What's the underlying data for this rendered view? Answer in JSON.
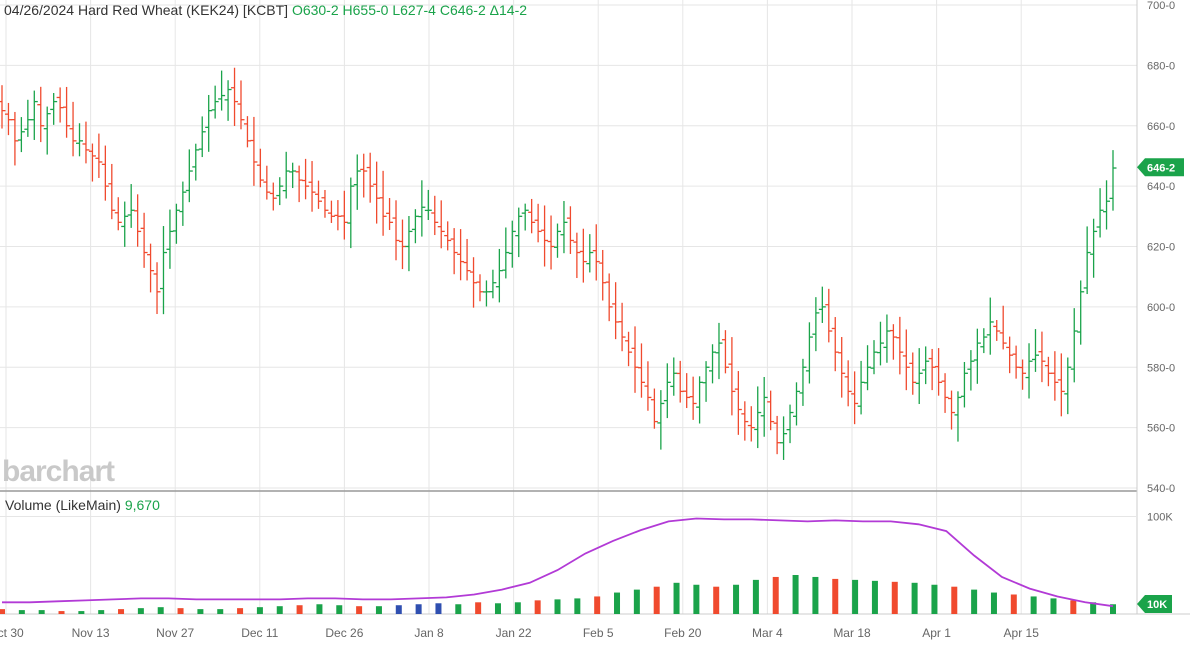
{
  "header": {
    "date": "04/26/2024",
    "symbol_name": "Hard Red Wheat (KEK24) [KCBT]",
    "open": "O630-2",
    "high": "H655-0",
    "low": "L627-4",
    "close": "C646-2",
    "change": "Δ14-2"
  },
  "brand": {
    "logo_text": "barchart"
  },
  "price_panel": {
    "current_price_tag": "646-2",
    "y_ticks": [
      "700-0",
      "680-0",
      "660-0",
      "640-0",
      "620-0",
      "600-0",
      "580-0",
      "560-0",
      "540-0"
    ]
  },
  "volume_panel": {
    "title": "Volume",
    "mode": "(LikeMain)",
    "value": "9,670",
    "y_tick": "100K",
    "current_volume_tag": "10K"
  },
  "colors": {
    "up": "#1aa34a",
    "down": "#f04a2e",
    "highlight": "#2f4fb0",
    "ma_line": "#b23ad6",
    "grid": "#e6e6e6",
    "axis_text": "#666666"
  },
  "chart_data": {
    "type": "bar",
    "subtype": "ohlc",
    "title": "Hard Red Wheat (KEK24) [KCBT]",
    "x_tick_labels": [
      "Oct 30",
      "Nov 13",
      "Nov 27",
      "Dec 11",
      "Dec 26",
      "Jan 8",
      "Jan 22",
      "Feb 5",
      "Feb 20",
      "Mar 4",
      "Mar 18",
      "Apr 1",
      "Apr 15"
    ],
    "ylim": [
      540,
      700
    ],
    "volume_ylim_k": [
      0,
      120
    ],
    "grid": true,
    "price_closes_approx": [
      665,
      662,
      655,
      658,
      662,
      668,
      660,
      664,
      668,
      666,
      660,
      655,
      655,
      652,
      650,
      648,
      640,
      632,
      628,
      630,
      632,
      625,
      618,
      612,
      605,
      618,
      625,
      632,
      638,
      645,
      652,
      658,
      665,
      668,
      670,
      672,
      668,
      662,
      655,
      648,
      642,
      638,
      636,
      640,
      645,
      645,
      642,
      640,
      638,
      635,
      632,
      630,
      630,
      628,
      640,
      645,
      645,
      640,
      636,
      630,
      628,
      622,
      620,
      625,
      630,
      633,
      632,
      628,
      625,
      622,
      618,
      615,
      612,
      608,
      605,
      605,
      608,
      612,
      618,
      625,
      630,
      632,
      628,
      625,
      622,
      620,
      625,
      628,
      622,
      618,
      615,
      618,
      615,
      608,
      600,
      595,
      590,
      585,
      580,
      575,
      570,
      562,
      568,
      575,
      578,
      572,
      570,
      568,
      575,
      580,
      585,
      588,
      580,
      572,
      566,
      562,
      560,
      565,
      570,
      562,
      555,
      558,
      565,
      572,
      580,
      590,
      598,
      600,
      592,
      585,
      578,
      572,
      568,
      575,
      580,
      585,
      588,
      592,
      590,
      585,
      580,
      575,
      578,
      582,
      580,
      575,
      570,
      565,
      570,
      578,
      582,
      588,
      590,
      595,
      592,
      588,
      584,
      580,
      578,
      582,
      584,
      582,
      578,
      575,
      572,
      580,
      592,
      605,
      618,
      625,
      632,
      635,
      646
    ],
    "volume_k_approx": [
      5,
      4,
      4,
      3,
      3,
      4,
      5,
      6,
      7,
      6,
      5,
      5,
      6,
      7,
      8,
      9,
      10,
      9,
      8,
      8,
      9,
      10,
      11,
      10,
      12,
      11,
      12,
      14,
      15,
      16,
      18,
      22,
      25,
      28,
      32,
      30,
      28,
      30,
      35,
      38,
      40,
      38,
      36,
      35,
      34,
      33,
      32,
      30,
      28,
      25,
      22,
      20,
      18,
      16,
      14,
      12,
      10
    ],
    "volume_ma_k_approx": [
      12,
      12,
      13,
      14,
      15,
      16,
      16,
      15,
      15,
      15,
      15,
      16,
      16,
      15,
      15,
      16,
      17,
      20,
      25,
      32,
      45,
      62,
      75,
      86,
      95,
      98,
      97,
      97,
      96,
      95,
      96,
      95,
      95,
      92,
      85,
      60,
      38,
      26,
      18,
      12,
      8
    ],
    "last": {
      "open": "630-2",
      "high": "655-0",
      "low": "627-4",
      "close": "646-2",
      "change": "14-2",
      "volume": "9,670"
    }
  }
}
